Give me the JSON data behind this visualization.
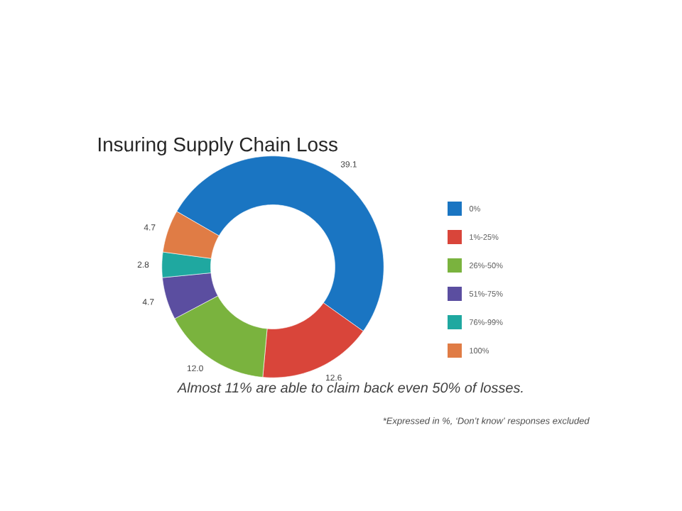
{
  "chart_data": {
    "type": "donut",
    "title": "Insuring Supply Chain Loss",
    "categories": [
      "0%",
      "1%-25%",
      "26%-50%",
      "51%-75%",
      "76%-99%",
      "100%"
    ],
    "values": [
      39.1,
      12.6,
      12.0,
      4.7,
      2.8,
      4.7
    ],
    "colors": [
      "#1a75c2",
      "#d9453a",
      "#7ab33e",
      "#5b4ea0",
      "#1fa8a0",
      "#e07c45"
    ],
    "value_labels": [
      "39.1",
      "12.6",
      "12.0",
      "4.7",
      "2.8",
      "4.7"
    ],
    "legend": "right",
    "annotations": [
      "Almost 11% are able to claim back even 50% of losses.",
      "*Expressed in %, ‘Don’t know’ responses excluded"
    ]
  }
}
